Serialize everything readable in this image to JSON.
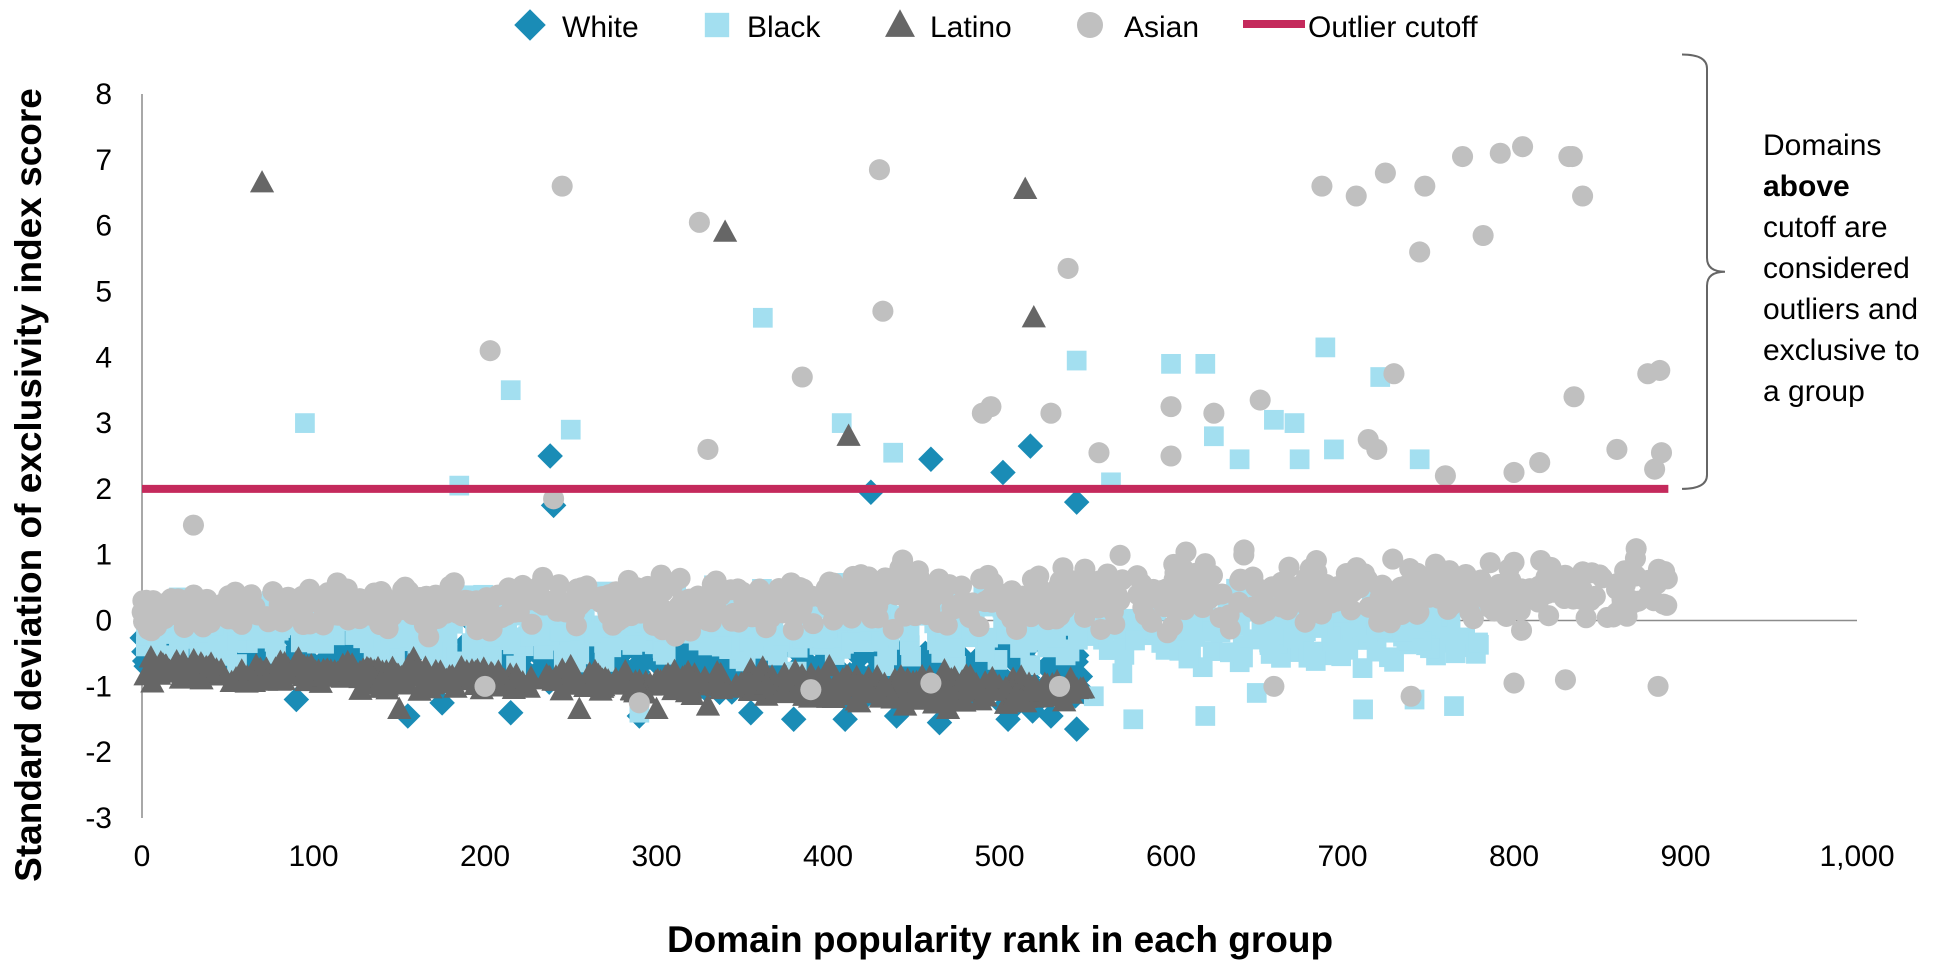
{
  "chart_data": {
    "type": "scatter",
    "xlabel": "Domain popularity rank in each group",
    "ylabel": "Standard deviation of exclusivity index score",
    "xlim": [
      0,
      1000
    ],
    "ylim": [
      -3,
      8
    ],
    "x_ticks": [
      0,
      100,
      200,
      300,
      400,
      500,
      600,
      700,
      800,
      900,
      1000
    ],
    "x_tick_labels": [
      "0",
      "100",
      "200",
      "300",
      "400",
      "500",
      "600",
      "700",
      "800",
      "900",
      "1,000"
    ],
    "y_ticks": [
      -3,
      -2,
      -1,
      0,
      1,
      2,
      3,
      4,
      5,
      6,
      7,
      8
    ],
    "y_tick_labels": [
      "-3",
      "-2",
      "-1",
      "0",
      "1",
      "2",
      "3",
      "4",
      "5",
      "6",
      "7",
      "8"
    ],
    "grid": false,
    "legend_position": "top",
    "cutoff": {
      "name": "Outlier cutoff",
      "y": 2,
      "x_range": [
        0,
        890
      ],
      "color": "#c42a5c"
    },
    "annotation": {
      "lines": [
        {
          "text": "Domains",
          "bold": false
        },
        {
          "text": "above",
          "bold": true
        },
        {
          "text": "cutoff are",
          "bold": false
        },
        {
          "text": "considered",
          "bold": false
        },
        {
          "text": "outliers and",
          "bold": false
        },
        {
          "text": "exclusive to",
          "bold": false
        },
        {
          "text": "a group",
          "bold": false
        }
      ],
      "bracket_y_range": [
        2,
        8.6
      ]
    },
    "series": [
      {
        "name": "White",
        "marker": "diamond",
        "color": "#1a8cb6",
        "rank_max": 550,
        "outliers": [
          [
            238,
            2.5
          ],
          [
            240,
            1.75
          ],
          [
            460,
            2.45
          ],
          [
            502,
            2.25
          ],
          [
            518,
            2.65
          ],
          [
            425,
            1.95
          ],
          [
            545,
            1.8
          ]
        ],
        "lows": [
          [
            155,
            -1.45
          ],
          [
            410,
            -1.5
          ],
          [
            545,
            -1.65
          ],
          [
            90,
            -1.2
          ],
          [
            215,
            -1.4
          ],
          [
            380,
            -1.5
          ],
          [
            465,
            -1.55
          ],
          [
            290,
            -1.45
          ],
          [
            505,
            -1.5
          ],
          [
            530,
            -1.45
          ],
          [
            440,
            -1.45
          ],
          [
            355,
            -1.4
          ],
          [
            175,
            -1.25
          ]
        ]
      },
      {
        "name": "Black",
        "marker": "square",
        "color": "#a3dff0",
        "rank_max": 780,
        "outliers": [
          [
            95,
            3.0
          ],
          [
            215,
            3.5
          ],
          [
            250,
            2.9
          ],
          [
            362,
            4.6
          ],
          [
            408,
            3.0
          ],
          [
            438,
            2.55
          ],
          [
            545,
            3.95
          ],
          [
            600,
            3.9
          ],
          [
            620,
            3.9
          ],
          [
            625,
            2.8
          ],
          [
            640,
            2.45
          ],
          [
            660,
            3.05
          ],
          [
            672,
            3.0
          ],
          [
            690,
            4.15
          ],
          [
            695,
            2.6
          ],
          [
            722,
            3.7
          ],
          [
            745,
            2.45
          ],
          [
            185,
            2.05
          ],
          [
            675,
            2.45
          ],
          [
            565,
            2.1
          ]
        ],
        "lows": [
          [
            578,
            -1.5
          ],
          [
            620,
            -1.45
          ],
          [
            712,
            -1.35
          ],
          [
            765,
            -1.3
          ],
          [
            290,
            -1.4
          ],
          [
            555,
            -1.15
          ],
          [
            742,
            -1.2
          ],
          [
            650,
            -1.1
          ]
        ]
      },
      {
        "name": "Latino",
        "marker": "triangle",
        "color": "#666666",
        "rank_max": 550,
        "outliers": [
          [
            70,
            6.65
          ],
          [
            340,
            5.9
          ],
          [
            515,
            6.55
          ],
          [
            520,
            4.6
          ],
          [
            412,
            2.8
          ]
        ],
        "lows": [
          [
            150,
            -1.35
          ],
          [
            255,
            -1.35
          ],
          [
            330,
            -1.3
          ],
          [
            445,
            -1.3
          ],
          [
            300,
            -1.35
          ],
          [
            470,
            -1.35
          ]
        ]
      },
      {
        "name": "Asian",
        "marker": "circle",
        "color": "#c0c0c0",
        "rank_max": 890,
        "outliers": [
          [
            245,
            6.6
          ],
          [
            203,
            4.1
          ],
          [
            325,
            6.05
          ],
          [
            330,
            2.6
          ],
          [
            385,
            3.7
          ],
          [
            430,
            6.85
          ],
          [
            432,
            4.7
          ],
          [
            540,
            5.35
          ],
          [
            530,
            3.15
          ],
          [
            490,
            3.15
          ],
          [
            495,
            3.25
          ],
          [
            558,
            2.55
          ],
          [
            600,
            3.25
          ],
          [
            600,
            2.5
          ],
          [
            625,
            3.15
          ],
          [
            652,
            3.35
          ],
          [
            688,
            6.6
          ],
          [
            708,
            6.45
          ],
          [
            715,
            2.75
          ],
          [
            720,
            2.6
          ],
          [
            725,
            6.8
          ],
          [
            730,
            3.75
          ],
          [
            745,
            5.6
          ],
          [
            748,
            6.6
          ],
          [
            770,
            7.05
          ],
          [
            782,
            5.85
          ],
          [
            792,
            7.1
          ],
          [
            805,
            7.2
          ],
          [
            832,
            7.05
          ],
          [
            834,
            7.05
          ],
          [
            835,
            3.4
          ],
          [
            840,
            6.45
          ],
          [
            860,
            2.6
          ],
          [
            878,
            3.75
          ],
          [
            885,
            3.8
          ],
          [
            882,
            2.3
          ],
          [
            886,
            2.55
          ],
          [
            760,
            2.2
          ],
          [
            815,
            2.4
          ],
          [
            800,
            2.25
          ],
          [
            30,
            1.45
          ],
          [
            240,
            1.85
          ]
        ],
        "lows": [
          [
            884,
            -1.0
          ],
          [
            800,
            -0.95
          ],
          [
            740,
            -1.15
          ],
          [
            390,
            -1.05
          ],
          [
            290,
            -1.25
          ],
          [
            200,
            -1.0
          ],
          [
            660,
            -1.0
          ],
          [
            830,
            -0.9
          ],
          [
            535,
            -1.0
          ],
          [
            460,
            -0.95
          ]
        ]
      }
    ]
  }
}
